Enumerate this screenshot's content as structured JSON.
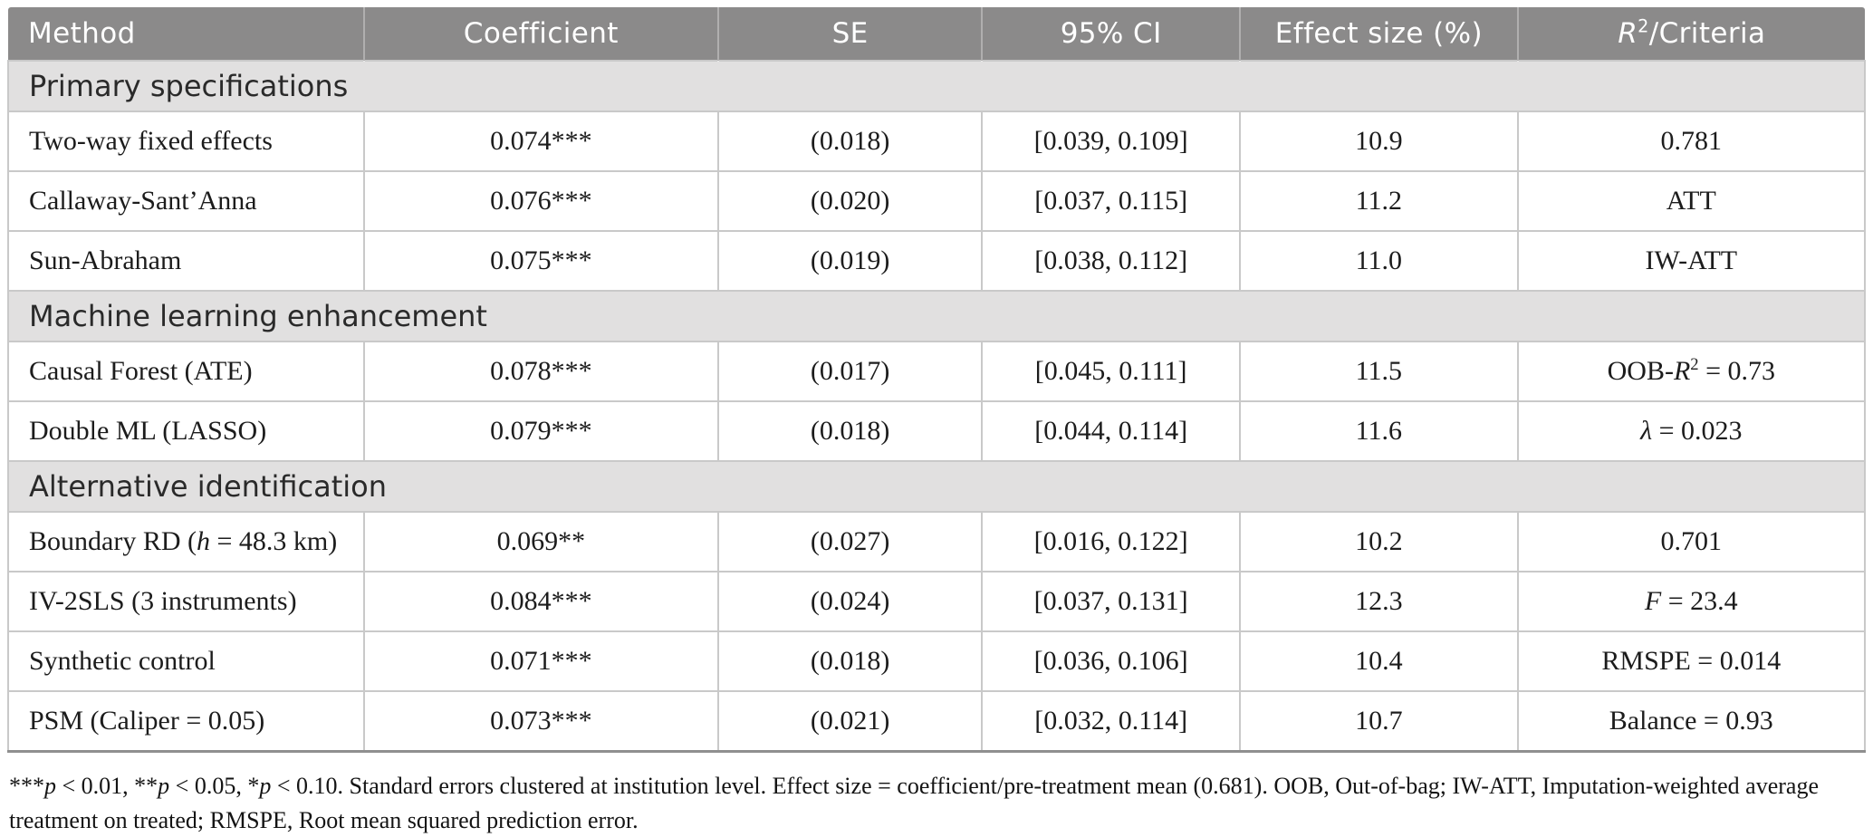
{
  "colors": {
    "header_bg": "#8b8a8a",
    "section_bg": "#e1e0e0",
    "row_border": "#c9c9c9",
    "bottom_rule": "#8f8f8f",
    "header_text": "#ffffff",
    "body_text": "#1c1c1c"
  },
  "table": {
    "columns": [
      {
        "label": "Method"
      },
      {
        "label": "Coefficient"
      },
      {
        "label": "SE"
      },
      {
        "label": "95% CI"
      },
      {
        "label": "Effect size (%)"
      },
      {
        "label": "{i}R{/i}{sup}2{/sup}/Criteria"
      }
    ],
    "sections": [
      {
        "title": "Primary specifications",
        "rows": [
          {
            "method": "Two-way fixed effects",
            "coefficient": "0.074***",
            "se": "(0.018)",
            "ci": "[0.039, 0.109]",
            "effect": "10.9",
            "criteria": "0.781"
          },
          {
            "method": "Callaway-Sant’Anna",
            "coefficient": "0.076***",
            "se": "(0.020)",
            "ci": "[0.037, 0.115]",
            "effect": "11.2",
            "criteria": "ATT"
          },
          {
            "method": "Sun-Abraham",
            "coefficient": "0.075***",
            "se": "(0.019)",
            "ci": "[0.038, 0.112]",
            "effect": "11.0",
            "criteria": "IW-ATT"
          }
        ]
      },
      {
        "title": "Machine learning enhancement",
        "rows": [
          {
            "method": "Causal Forest (ATE)",
            "coefficient": "0.078***",
            "se": "(0.017)",
            "ci": "[0.045, 0.111]",
            "effect": "11.5",
            "criteria": "OOB-{i}R{/i}{sup}2{/sup} = 0.73"
          },
          {
            "method": "Double ML (LASSO)",
            "coefficient": "0.079***",
            "se": "(0.018)",
            "ci": "[0.044, 0.114]",
            "effect": "11.6",
            "criteria": "{i}λ{/i} = 0.023"
          }
        ]
      },
      {
        "title": "Alternative identification",
        "rows": [
          {
            "method": "Boundary RD ({i}h{/i} = 48.3 km)",
            "coefficient": "0.069**",
            "se": "(0.027)",
            "ci": "[0.016, 0.122]",
            "effect": "10.2",
            "criteria": "0.701"
          },
          {
            "method": "IV-2SLS (3 instruments)",
            "coefficient": "0.084***",
            "se": "(0.024)",
            "ci": "[0.037, 0.131]",
            "effect": "12.3",
            "criteria": "{i}F{/i} = 23.4"
          },
          {
            "method": "Synthetic control",
            "coefficient": "0.071***",
            "se": "(0.018)",
            "ci": "[0.036, 0.106]",
            "effect": "10.4",
            "criteria": "RMSPE = 0.014"
          },
          {
            "method": "PSM (Caliper = 0.05)",
            "coefficient": "0.073***",
            "se": "(0.021)",
            "ci": "[0.032, 0.114]",
            "effect": "10.7",
            "criteria": "Balance = 0.93"
          }
        ]
      }
    ],
    "footnote": "***{i}p{/i} < 0.01, **{i}p{/i} < 0.05, *{i}p{/i} < 0.10. Standard errors clustered at institution level. Effect size = coefficient/pre-treatment mean (0.681). OOB, Out-of-bag; IW-ATT, Imputation-weighted average treatment on treated; RMSPE, Root mean squared prediction error."
  }
}
